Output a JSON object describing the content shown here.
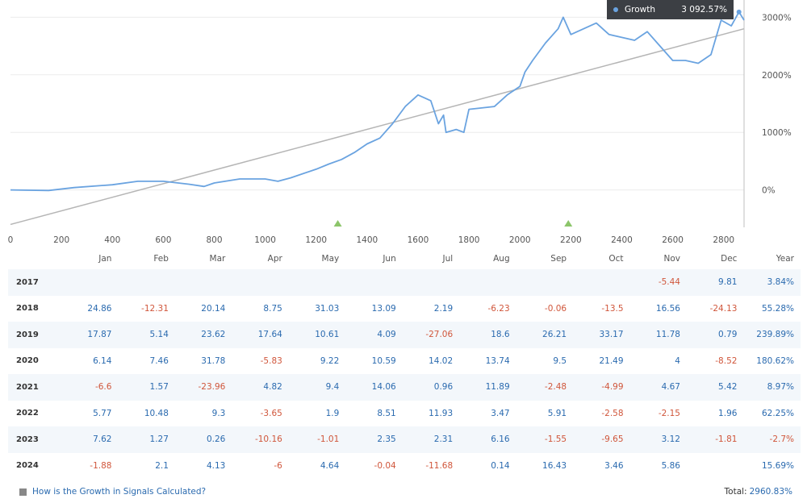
{
  "tooltip": {
    "label": "Growth",
    "value": "3 092.57%"
  },
  "chart_data": {
    "type": "line",
    "xlim": [
      0,
      2880
    ],
    "ylim": [
      -650,
      3300
    ],
    "x_ticks": [
      "0",
      "200",
      "400",
      "600",
      "800",
      "1000",
      "1200",
      "1400",
      "1600",
      "1800",
      "2000",
      "2200",
      "2400",
      "2600",
      "2800"
    ],
    "y_ticks": [
      "3000%",
      "2000%",
      "1000%",
      "0%"
    ],
    "markers_x": [
      1285,
      2190
    ],
    "series": [
      {
        "values_x": [
          0,
          150,
          250,
          400,
          500,
          600,
          700,
          760,
          800,
          900,
          1000,
          1050,
          1100,
          1200,
          1250,
          1300,
          1350,
          1400,
          1450,
          1500,
          1550,
          1600,
          1650,
          1680,
          1700,
          1710,
          1750,
          1780,
          1800,
          1900,
          1950,
          2000,
          2020,
          2050,
          2100,
          2150,
          2170,
          2200,
          2250,
          2300,
          2350,
          2400,
          2450,
          2500,
          2550,
          2600,
          2650,
          2700,
          2750,
          2790,
          2830,
          2860,
          2880
        ],
        "values_y": [
          0,
          -10,
          40,
          90,
          150,
          150,
          100,
          60,
          120,
          190,
          190,
          150,
          210,
          360,
          450,
          530,
          650,
          800,
          900,
          1150,
          1450,
          1650,
          1550,
          1150,
          1300,
          1000,
          1050,
          1000,
          1400,
          1450,
          1650,
          1800,
          2050,
          2250,
          2550,
          2800,
          3000,
          2700,
          2800,
          2900,
          2700,
          2650,
          2600,
          2750,
          2500,
          2250,
          2250,
          2200,
          2350,
          2950,
          2850,
          3092,
          2950
        ]
      },
      {
        "values_x": [
          0,
          2880
        ],
        "values_y": [
          -600,
          2800
        ]
      }
    ]
  },
  "table": {
    "headers": [
      "",
      "Jan",
      "Feb",
      "Mar",
      "Apr",
      "May",
      "Jun",
      "Jul",
      "Aug",
      "Sep",
      "Oct",
      "Nov",
      "Dec",
      "Year"
    ],
    "rows": [
      {
        "year": "2017",
        "cells": [
          "",
          "",
          "",
          "",
          "",
          "",
          "",
          "",
          "",
          "",
          "-5.44",
          "9.81",
          "3.84%"
        ]
      },
      {
        "year": "2018",
        "cells": [
          "24.86",
          "-12.31",
          "20.14",
          "8.75",
          "31.03",
          "13.09",
          "2.19",
          "-6.23",
          "-0.06",
          "-13.5",
          "16.56",
          "-24.13",
          "55.28%"
        ]
      },
      {
        "year": "2019",
        "cells": [
          "17.87",
          "5.14",
          "23.62",
          "17.64",
          "10.61",
          "4.09",
          "-27.06",
          "18.6",
          "26.21",
          "33.17",
          "11.78",
          "0.79",
          "239.89%"
        ]
      },
      {
        "year": "2020",
        "cells": [
          "6.14",
          "7.46",
          "31.78",
          "-5.83",
          "9.22",
          "10.59",
          "14.02",
          "13.74",
          "9.5",
          "21.49",
          "4",
          "-8.52",
          "180.62%"
        ]
      },
      {
        "year": "2021",
        "cells": [
          "-6.6",
          "1.57",
          "-23.96",
          "4.82",
          "9.4",
          "14.06",
          "0.96",
          "11.89",
          "-2.48",
          "-4.99",
          "4.67",
          "5.42",
          "8.97%"
        ]
      },
      {
        "year": "2022",
        "cells": [
          "5.77",
          "10.48",
          "9.3",
          "-3.65",
          "1.9",
          "8.51",
          "11.93",
          "3.47",
          "5.91",
          "-2.58",
          "-2.15",
          "1.96",
          "62.25%"
        ]
      },
      {
        "year": "2023",
        "cells": [
          "7.62",
          "1.27",
          "0.26",
          "-10.16",
          "-1.01",
          "2.35",
          "2.31",
          "6.16",
          "-1.55",
          "-9.65",
          "3.12",
          "-1.81",
          "-2.7%"
        ]
      },
      {
        "year": "2024",
        "cells": [
          "-1.88",
          "2.1",
          "4.13",
          "-6",
          "4.64",
          "-0.04",
          "-11.68",
          "0.14",
          "16.43",
          "3.46",
          "5.86",
          "",
          "15.69%"
        ]
      }
    ]
  },
  "footer": {
    "link": "How is the Growth in Signals Calculated?",
    "total_label": "Total:",
    "total_value": "2960.83%"
  },
  "colors": {
    "growth_line": "#6aa3e0",
    "trend_line": "#b5b5b5",
    "positive": "#2a6aaf",
    "negative": "#d0563b",
    "marker": "#8cc56a"
  }
}
